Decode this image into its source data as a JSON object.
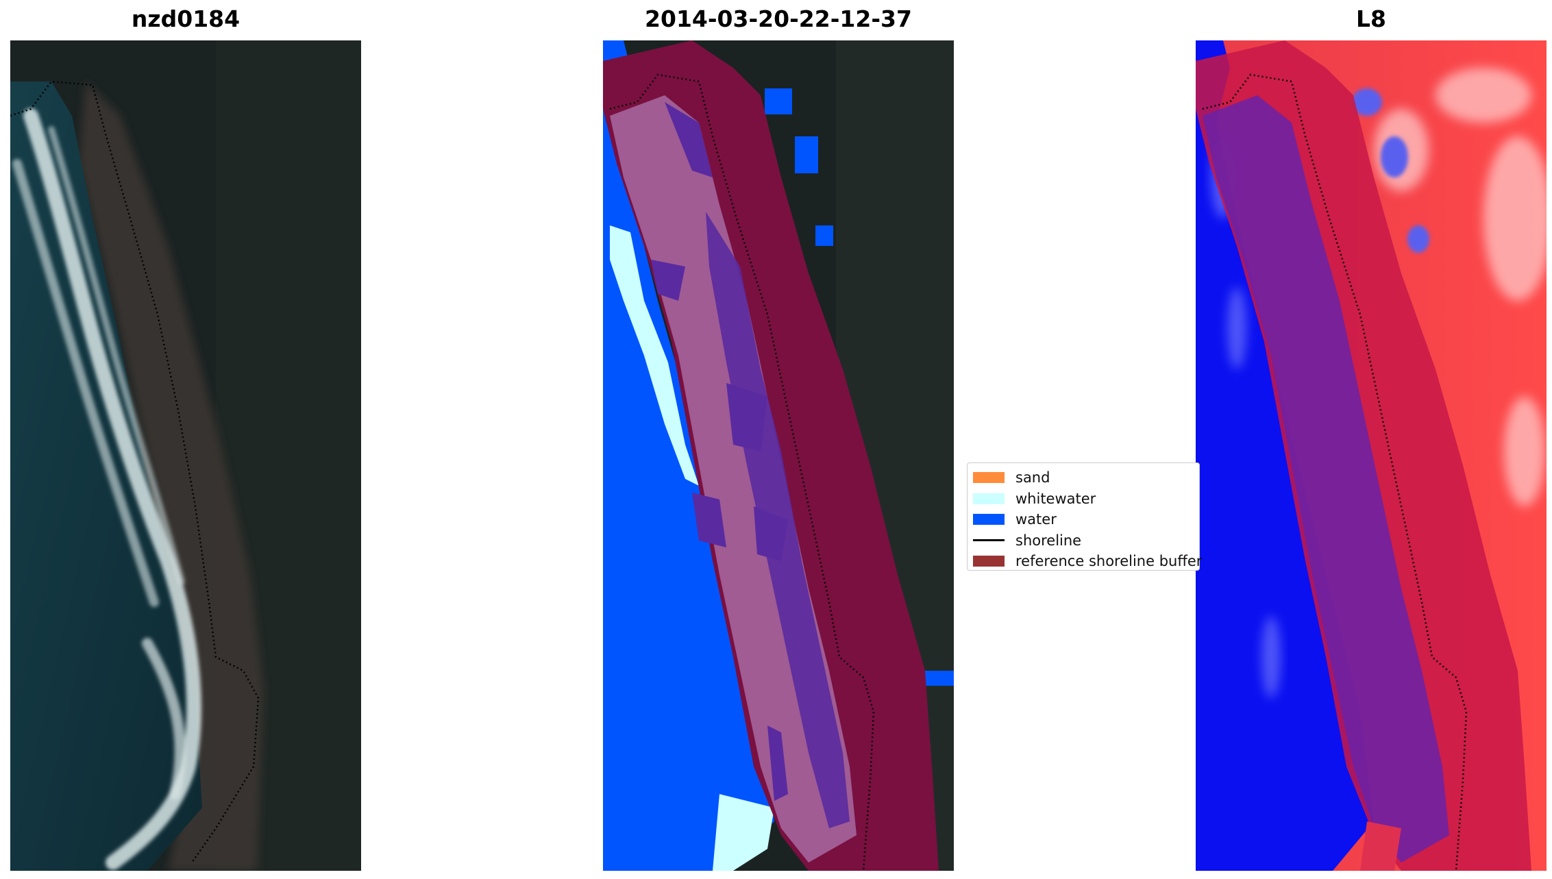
{
  "titles": {
    "left": "nzd0184",
    "middle": "2014-03-20-22-12-37",
    "right": "L8"
  },
  "legend": {
    "items": [
      {
        "label": "sand",
        "color": "#ff8c3a",
        "kind": "patch"
      },
      {
        "label": "whitewater",
        "color": "#ccffff",
        "kind": "patch"
      },
      {
        "label": "water",
        "color": "#0055ff",
        "kind": "patch"
      },
      {
        "label": "shoreline",
        "color": "#000000",
        "kind": "line"
      },
      {
        "label": "reference shoreline buffer",
        "color": "#993333",
        "kind": "patch"
      }
    ]
  },
  "colors": {
    "ocean": "#11353f",
    "land": "#1c2424",
    "classified_water": "#0055ff",
    "whitewater": "#ccffff",
    "buffer": "#7a1040",
    "beach_overlay": "#9a5a90",
    "sand_overlay": "#5a2a9a",
    "mndwi_water": "#0a10f0",
    "mndwi_land": "#ff3a3a"
  }
}
